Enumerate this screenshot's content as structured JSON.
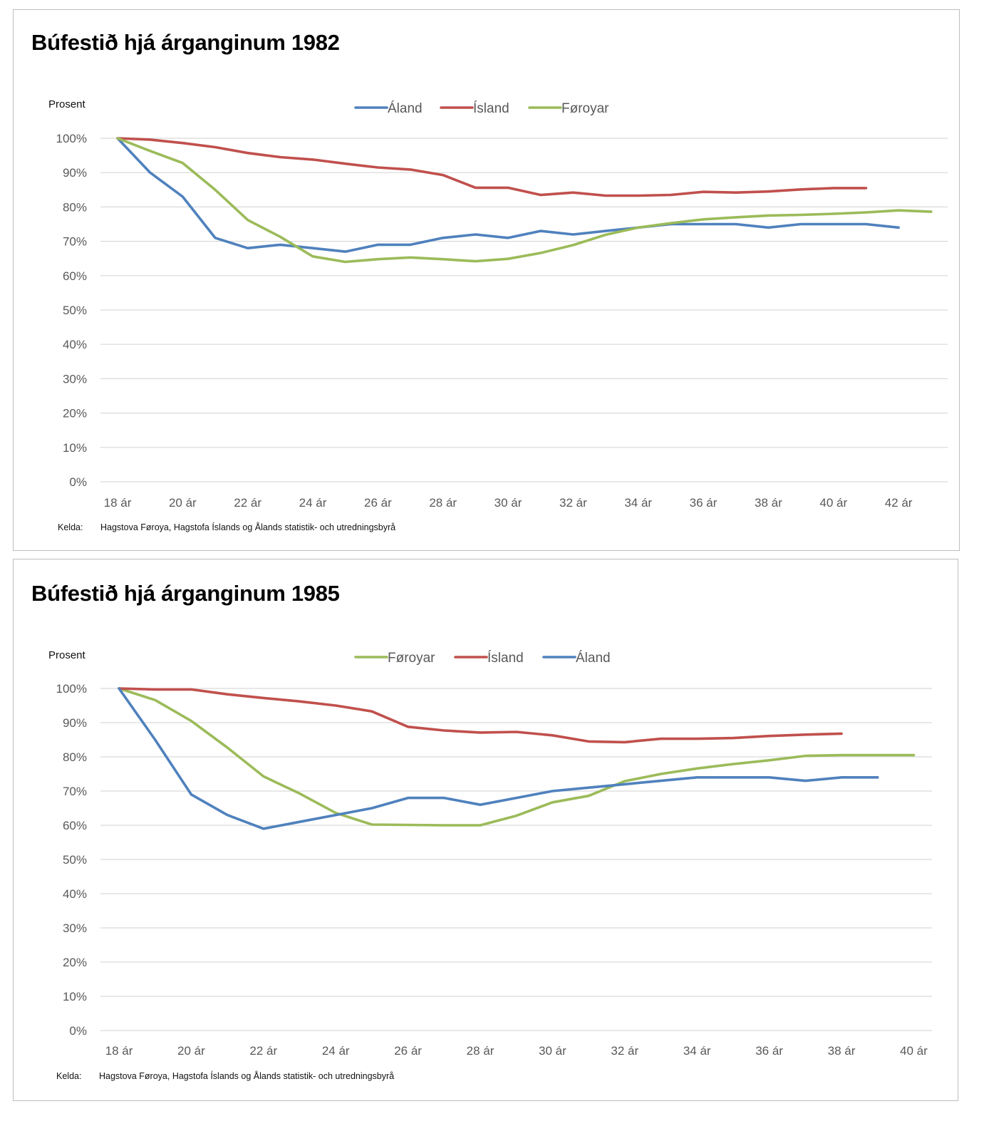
{
  "chart_data": [
    {
      "type": "line",
      "title": "Búfestið hjá árganginum 1982",
      "ylabel": "Prosent",
      "xlabel": "",
      "ylim": [
        0,
        100
      ],
      "yticks": [
        "0%",
        "10%",
        "20%",
        "30%",
        "40%",
        "50%",
        "60%",
        "70%",
        "80%",
        "90%",
        "100%"
      ],
      "x_range": [
        18,
        43
      ],
      "x_ticks": [
        18,
        20,
        22,
        24,
        26,
        28,
        30,
        32,
        34,
        36,
        38,
        40,
        42
      ],
      "x_tick_labels": [
        "18 ár",
        "20 ár",
        "22 ár",
        "24 ár",
        "26 ár",
        "28 ár",
        "30 ár",
        "32 ár",
        "34 ár",
        "36 ár",
        "38 ár",
        "40 ár",
        "42 ár"
      ],
      "grid": true,
      "legend_position": "top-center",
      "source_label": "Kelda:",
      "source_text": "Hagstova Føroya, Hagstofa Íslands og Ålands statistik- och utredningsbyrå",
      "series": [
        {
          "name": "Áland",
          "color": "#4f81bd",
          "start_age": 18,
          "values": [
            100,
            90,
            83,
            71,
            68,
            69,
            68,
            67,
            69,
            69,
            71,
            72,
            71,
            73,
            72,
            73,
            74,
            75,
            75,
            75,
            74,
            75,
            75,
            75,
            74
          ]
        },
        {
          "name": "Ísland",
          "color": "#c0504d",
          "start_age": 18,
          "values": [
            100,
            99.6,
            98.6,
            97.4,
            95.7,
            94.5,
            93.8,
            92.6,
            91.5,
            90.9,
            89.3,
            85.6,
            85.6,
            83.5,
            84.2,
            83.3,
            83.3,
            83.5,
            84.4,
            84.2,
            84.5,
            85.1,
            85.5,
            85.5
          ]
        },
        {
          "name": "Føroyar",
          "color": "#9bbb59",
          "start_age": 18,
          "values": [
            100,
            96.3,
            92.8,
            85,
            76.2,
            71.3,
            65.6,
            64,
            64.8,
            65.3,
            64.8,
            64.2,
            64.9,
            66.6,
            68.9,
            71.9,
            74,
            75.3,
            76.4,
            77,
            77.5,
            77.7,
            78,
            78.4,
            79,
            78.6
          ]
        }
      ]
    },
    {
      "type": "line",
      "title": "Búfestið hjá árganginum 1985",
      "ylabel": "Prosent",
      "xlabel": "",
      "ylim": [
        0,
        100
      ],
      "yticks": [
        "0%",
        "10%",
        "20%",
        "30%",
        "40%",
        "50%",
        "60%",
        "70%",
        "80%",
        "90%",
        "100%"
      ],
      "x_range": [
        18,
        40
      ],
      "x_ticks": [
        18,
        20,
        22,
        24,
        26,
        28,
        30,
        32,
        34,
        36,
        38,
        40
      ],
      "x_tick_labels": [
        "18 ár",
        "20 ár",
        "22 ár",
        "24 ár",
        "26 ár",
        "28 ár",
        "30 ár",
        "32 ár",
        "34 ár",
        "36 ár",
        "38 ár",
        "40 ár"
      ],
      "grid": true,
      "legend_position": "top-center",
      "source_label": "Kelda:",
      "source_text": "Hagstova Føroya, Hagstofa Íslands og Ålands statistik- och utredningsbyrå",
      "series": [
        {
          "name": "Føroyar",
          "color": "#9bbb59",
          "start_age": 18,
          "values": [
            100,
            96.6,
            90.5,
            82.7,
            74.3,
            69.3,
            63.6,
            60.2,
            60.1,
            60,
            60,
            62.8,
            66.7,
            68.6,
            72.9,
            75,
            76.6,
            77.9,
            79,
            80.3,
            80.5,
            80.5,
            80.5
          ]
        },
        {
          "name": "Ísland",
          "color": "#c0504d",
          "start_age": 18,
          "values": [
            100,
            99.7,
            99.7,
            98.3,
            97.2,
            96.2,
            95,
            93.3,
            88.8,
            87.7,
            87.1,
            87.3,
            86.3,
            84.5,
            84.3,
            85.3,
            85.3,
            85.5,
            86.1,
            86.5,
            86.8
          ]
        },
        {
          "name": "Áland",
          "color": "#4f81bd",
          "start_age": 18,
          "values": [
            100,
            85,
            69,
            63,
            59,
            61,
            63,
            65,
            68,
            68,
            66,
            68,
            70,
            71,
            72,
            73,
            74,
            74,
            74,
            73,
            74,
            74
          ]
        }
      ]
    }
  ]
}
